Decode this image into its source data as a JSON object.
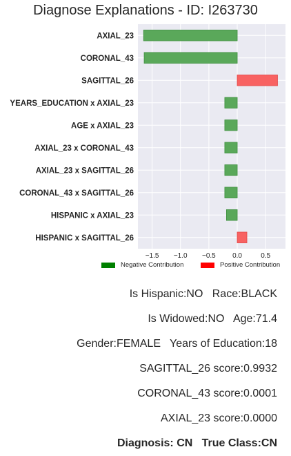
{
  "chart_data": {
    "type": "bar",
    "orientation": "horizontal",
    "title": "Diagnose Explanations - ID: I263730",
    "categories": [
      "AXIAL_23",
      "CORONAL_43",
      "SAGITTAL_26",
      "YEARS_EDUCATION x AXIAL_23",
      "AGE x AXIAL_23",
      "AXIAL_23 x CORONAL_43",
      "AXIAL_23 x SAGITTAL_26",
      "CORONAL_43 x SAGITTAL_26",
      "HISPANIC x AXIAL_23",
      "HISPANIC x SAGITTAL_26"
    ],
    "values": [
      -1.65,
      -1.64,
      0.71,
      -0.22,
      -0.22,
      -0.22,
      -0.22,
      -0.22,
      -0.19,
      0.17
    ],
    "xlim": [
      -1.75,
      0.85
    ],
    "xticks": [
      "-1.5",
      "-1.0",
      "-0.5",
      "0.0",
      "0.5"
    ],
    "grid": true,
    "legend_position": "bottom-right",
    "legend": [
      {
        "label": "Negative Contribution",
        "color": "#008000"
      },
      {
        "label": "Positive Contribution",
        "color": "#ff0000"
      }
    ],
    "colors": {
      "negative": "#5aa85a",
      "negative_edge": "#3f8f3f",
      "positive": "#f86262",
      "positive_edge": "#e04848",
      "plot_bg": "#eaeaf2"
    }
  },
  "info": [
    {
      "text": "Is Hispanic:NO   Race:BLACK",
      "bold": false
    },
    {
      "text": "Is Widowed:NO   Age:71.4",
      "bold": false
    },
    {
      "text": "Gender:FEMALE   Years of Education:18",
      "bold": false
    },
    {
      "text": "SAGITTAL_26 score:0.9932",
      "bold": false
    },
    {
      "text": "CORONAL_43 score:0.0001",
      "bold": false
    },
    {
      "text": "AXIAL_23 score:0.0000",
      "bold": false
    },
    {
      "text": "Diagnosis: CN   True Class:CN",
      "bold": true
    }
  ]
}
